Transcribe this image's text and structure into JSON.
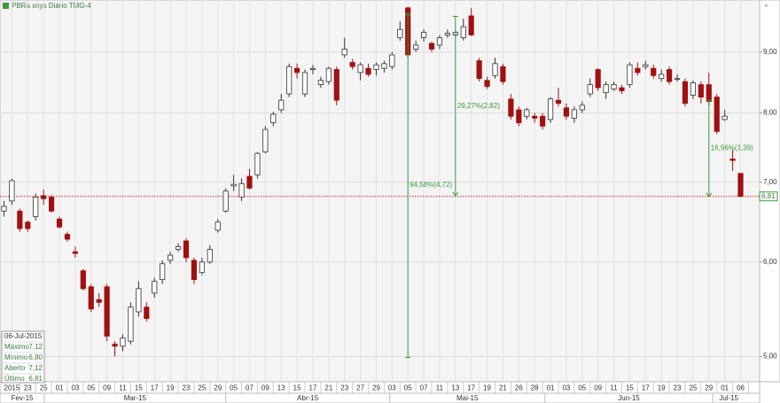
{
  "chart_data": {
    "type": "candlestick",
    "title": "PBRa xnys Diário TMG-4",
    "log_scale": true,
    "grid": true,
    "ylim": [
      4.77,
      9.95
    ],
    "yticks": [
      {
        "value": 5,
        "label": "5,00"
      },
      {
        "value": 6,
        "label": "6,00"
      },
      {
        "value": 7,
        "label": "7,00"
      },
      {
        "value": 8,
        "label": "8,00"
      },
      {
        "value": 9,
        "label": "9,00"
      }
    ],
    "up_color": "#ffffff",
    "down_color": "#a01010",
    "categories": [
      null,
      "2015",
      null,
      "23",
      null,
      "25",
      null,
      "01",
      null,
      "03",
      null,
      "05",
      null,
      "09",
      null,
      "11",
      null,
      "15",
      null,
      "17",
      null,
      "19",
      null,
      "23",
      null,
      "25",
      null,
      "29",
      null,
      "05",
      null,
      "07",
      null,
      "09",
      null,
      "13",
      null,
      "15",
      null,
      "17",
      null,
      "21",
      null,
      "23",
      null,
      "27",
      null,
      "29",
      null,
      "03",
      null,
      "05",
      null,
      "07",
      null,
      "11",
      null,
      "13",
      null,
      "17",
      null,
      "19",
      null,
      "21",
      null,
      "26",
      null,
      "28",
      null,
      "01",
      null,
      "03",
      null,
      "05",
      null,
      "09",
      null,
      "11",
      null,
      "15",
      null,
      "17",
      null,
      "19",
      null,
      "23",
      null,
      "25",
      null,
      "29",
      null,
      "01",
      null,
      "06"
    ],
    "months": [
      "Fev-15",
      "Mar-15",
      "Abr-15",
      "Mai-15",
      "Jun-15",
      "Jul-15"
    ],
    "open": [
      6.62,
      6.75,
      6.62,
      6.48,
      6.55,
      6.82,
      6.8,
      6.52,
      6.33,
      6.12,
      5.9,
      5.72,
      5.58,
      5.72,
      5.12,
      5.1,
      5.15,
      5.45,
      5.5,
      5.65,
      5.8,
      6.02,
      6.15,
      6.25,
      6.02,
      5.88,
      6.0,
      6.38,
      6.62,
      6.95,
      6.8,
      7.08,
      7.1,
      7.42,
      7.85,
      8.05,
      8.3,
      8.72,
      8.3,
      8.7,
      8.45,
      8.5,
      8.7,
      8.95,
      8.82,
      8.65,
      8.72,
      8.7,
      8.72,
      8.75,
      9.25,
      9.8,
      9.05,
      9.25,
      9.15,
      9.12,
      9.3,
      9.3,
      9.25,
      9.65,
      8.85,
      8.52,
      8.6,
      8.75,
      8.22,
      8.05,
      7.95,
      7.95,
      7.95,
      7.9,
      8.2,
      8.08,
      7.92,
      8.05,
      8.3,
      8.7,
      8.32,
      8.38,
      8.4,
      8.45,
      8.72,
      8.75,
      8.72,
      8.55,
      8.7,
      8.55,
      8.5,
      8.28,
      8.45,
      8.45,
      8.25,
      7.9,
      7.32,
      7.12
    ],
    "high": [
      6.75,
      7.05,
      6.65,
      6.5,
      6.85,
      6.9,
      6.83,
      6.55,
      6.36,
      6.18,
      5.92,
      5.75,
      5.65,
      5.75,
      5.15,
      5.22,
      5.55,
      5.78,
      5.55,
      5.82,
      6.02,
      6.12,
      6.22,
      6.28,
      6.05,
      6.05,
      6.2,
      6.52,
      6.92,
      7.1,
      7.05,
      7.18,
      7.42,
      7.8,
      8.02,
      8.3,
      8.8,
      8.8,
      8.7,
      8.78,
      8.58,
      8.75,
      8.75,
      9.25,
      8.88,
      8.82,
      8.8,
      8.82,
      8.85,
      9.0,
      9.55,
      9.82,
      9.2,
      9.4,
      9.18,
      9.3,
      9.4,
      9.4,
      9.6,
      9.8,
      8.9,
      8.58,
      8.9,
      8.8,
      8.3,
      8.1,
      8.08,
      8.0,
      8.0,
      8.25,
      8.4,
      8.15,
      8.1,
      8.18,
      8.55,
      8.72,
      8.5,
      8.5,
      8.45,
      8.82,
      8.82,
      8.85,
      8.78,
      8.7,
      8.75,
      8.62,
      8.55,
      8.52,
      8.5,
      8.65,
      8.3,
      8.05,
      7.45,
      7.12
    ],
    "low": [
      6.55,
      6.7,
      6.36,
      6.36,
      6.5,
      6.7,
      6.6,
      6.4,
      6.24,
      6.05,
      5.68,
      5.45,
      5.5,
      5.15,
      5.0,
      5.05,
      5.12,
      5.4,
      5.35,
      5.6,
      5.75,
      5.98,
      6.12,
      6.0,
      5.75,
      5.85,
      5.98,
      6.35,
      6.6,
      6.88,
      6.75,
      6.9,
      7.05,
      7.4,
      7.8,
      8.0,
      8.25,
      8.55,
      8.25,
      8.62,
      8.4,
      8.45,
      8.12,
      8.9,
      8.7,
      8.52,
      8.58,
      8.6,
      8.65,
      8.7,
      9.2,
      8.9,
      9.0,
      9.18,
      9.0,
      9.05,
      9.25,
      9.25,
      9.2,
      9.28,
      8.5,
      8.38,
      8.55,
      8.45,
      7.9,
      7.8,
      7.9,
      7.85,
      7.75,
      7.85,
      8.1,
      7.9,
      7.85,
      8.0,
      8.25,
      8.35,
      8.22,
      8.35,
      8.3,
      8.4,
      8.6,
      8.7,
      8.55,
      8.5,
      8.45,
      8.5,
      8.1,
      8.22,
      8.15,
      8.12,
      7.68,
      7.88,
      7.15,
      6.8
    ],
    "close": [
      6.68,
      7.02,
      6.4,
      6.4,
      6.8,
      6.78,
      6.62,
      6.42,
      6.27,
      6.1,
      5.7,
      5.48,
      5.55,
      5.2,
      5.1,
      5.18,
      5.5,
      5.7,
      5.38,
      5.78,
      5.98,
      6.08,
      6.18,
      6.05,
      5.8,
      6.0,
      6.15,
      6.48,
      6.88,
      6.97,
      6.98,
      6.92,
      7.4,
      7.75,
      7.98,
      8.2,
      8.75,
      8.65,
      8.65,
      8.72,
      8.52,
      8.72,
      8.2,
      9.05,
      8.75,
      8.78,
      8.62,
      8.78,
      8.8,
      8.95,
      9.4,
      8.95,
      9.12,
      9.35,
      9.05,
      9.25,
      9.33,
      9.35,
      9.45,
      9.3,
      8.55,
      8.42,
      8.8,
      8.5,
      7.95,
      7.85,
      8.05,
      7.92,
      7.8,
      8.22,
      8.15,
      7.95,
      8.05,
      8.12,
      8.45,
      8.4,
      8.45,
      8.45,
      8.35,
      8.78,
      8.65,
      8.78,
      8.6,
      8.62,
      8.5,
      8.55,
      8.15,
      8.48,
      8.25,
      8.18,
      7.72,
      7.95,
      7.3,
      6.81
    ],
    "last_label": "6,81",
    "measures": [
      {
        "at": 51,
        "from": 4.99,
        "to": 9.71,
        "label": "94,58%(4,72)"
      },
      {
        "at": 57,
        "from": 9.64,
        "to": 6.82,
        "label": "29,27%(2,82)"
      },
      {
        "at": 89,
        "from": 8.2,
        "to": 6.81,
        "label": "16,96%(1,39)"
      }
    ],
    "info": {
      "date": "06-Jul-2015",
      "rows": [
        [
          "Máximo",
          "7,12"
        ],
        [
          "Mínimo",
          "6,80"
        ],
        [
          "Aberto",
          "7,12"
        ],
        [
          "Último",
          "6,81"
        ]
      ]
    }
  }
}
